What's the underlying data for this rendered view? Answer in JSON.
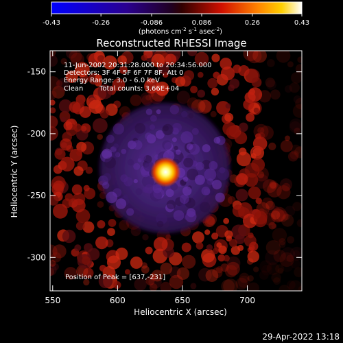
{
  "chart_data": {
    "type": "heatmap",
    "title": "Reconstructed RHESSI Image",
    "xlabel": "Heliocentric X (arcsec)",
    "ylabel": "Heliocentric Y (arcsec)",
    "xlim": [
      548,
      742
    ],
    "ylim": [
      -327,
      -133
    ],
    "x_ticks": [
      550,
      600,
      650,
      700
    ],
    "y_ticks": [
      -150,
      -200,
      -250,
      -300
    ],
    "colorbar": {
      "min": -0.43,
      "max": 0.43,
      "ticks": [
        "-0.43",
        "-0.26",
        "-0.086",
        "0.086",
        "0.26",
        "0.43"
      ],
      "label_main": "(photons cm",
      "label_exp1": "-2",
      "label_mid": " s",
      "label_exp2": "-1",
      "label_mid2": " asec",
      "label_exp3": "-2",
      "label_end": ")"
    },
    "peak": {
      "x": 637,
      "y": -231,
      "value": 0.43
    },
    "annotations": {
      "line1": "11-Jun-2002 20:31:28.000 to 20:34:56.000",
      "line2": "Detectors: 3F 4F 5F 6F 7F 8F, Att 0",
      "line3": "Energy Range: 3.0 - 6.0 keV",
      "line4_method": "Clean",
      "line4_counts": "Total counts: 3.66E+04",
      "peak_text": "Position of Peak = [637,-231]"
    },
    "colors": {
      "background": "#000000",
      "ring": "#b01a10",
      "core": "#ffffff",
      "halo": "#4a1b8a"
    }
  },
  "footer": {
    "timestamp": "29-Apr-2022 13:18"
  }
}
